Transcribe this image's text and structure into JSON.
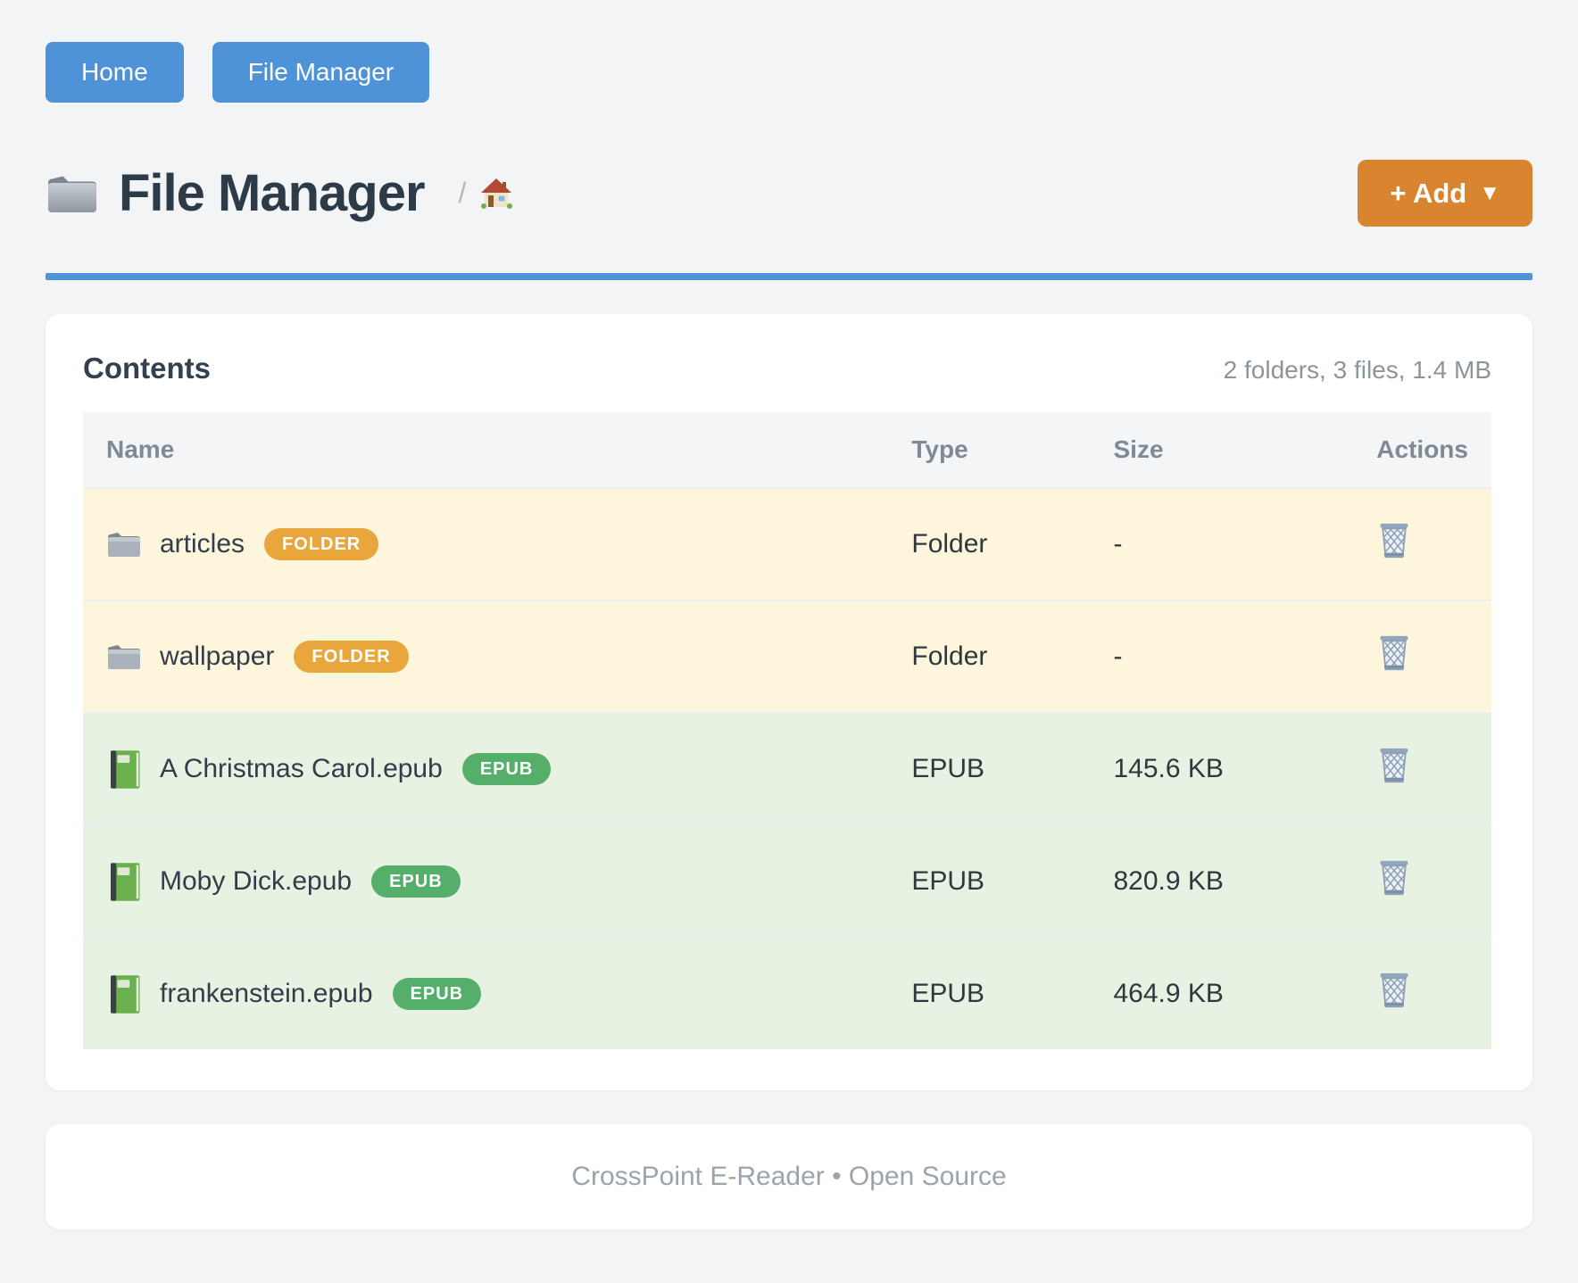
{
  "nav": {
    "home_label": "Home",
    "file_manager_label": "File Manager"
  },
  "header": {
    "title": "File Manager",
    "title_icon": "folder-icon",
    "breadcrumb_separator": "/",
    "breadcrumb_home_icon": "house-icon",
    "add_button_label": "+ Add",
    "add_button_caret": "▼"
  },
  "contents": {
    "title": "Contents",
    "summary": "2 folders, 3 files, 1.4 MB",
    "columns": [
      "Name",
      "Type",
      "Size",
      "Actions"
    ],
    "rows": [
      {
        "name": "articles",
        "badge": "FOLDER",
        "type": "Folder",
        "size": "-",
        "kind": "folder",
        "icon": "folder-icon",
        "action_icon": "trash-icon"
      },
      {
        "name": "wallpaper",
        "badge": "FOLDER",
        "type": "Folder",
        "size": "-",
        "kind": "folder",
        "icon": "folder-icon",
        "action_icon": "trash-icon"
      },
      {
        "name": "A Christmas Carol.epub",
        "badge": "EPUB",
        "type": "EPUB",
        "size": "145.6 KB",
        "kind": "file",
        "icon": "book-icon",
        "action_icon": "trash-icon"
      },
      {
        "name": "Moby Dick.epub",
        "badge": "EPUB",
        "type": "EPUB",
        "size": "820.9 KB",
        "kind": "file",
        "icon": "book-icon",
        "action_icon": "trash-icon"
      },
      {
        "name": "frankenstein.epub",
        "badge": "EPUB",
        "type": "EPUB",
        "size": "464.9 KB",
        "kind": "file",
        "icon": "book-icon",
        "action_icon": "trash-icon"
      }
    ]
  },
  "footer": {
    "text": "CrossPoint E-Reader • Open Source"
  },
  "colors": {
    "primary_blue": "#4e93d7",
    "accent_orange": "#d9842f",
    "folder_badge": "#e9a63c",
    "epub_badge": "#55af6a",
    "folder_row_bg": "#fdf5dc",
    "file_row_bg": "#e7f2e3",
    "page_bg": "#f3f4f5",
    "title_text": "#2d3b49",
    "muted_text": "#8b959c"
  }
}
